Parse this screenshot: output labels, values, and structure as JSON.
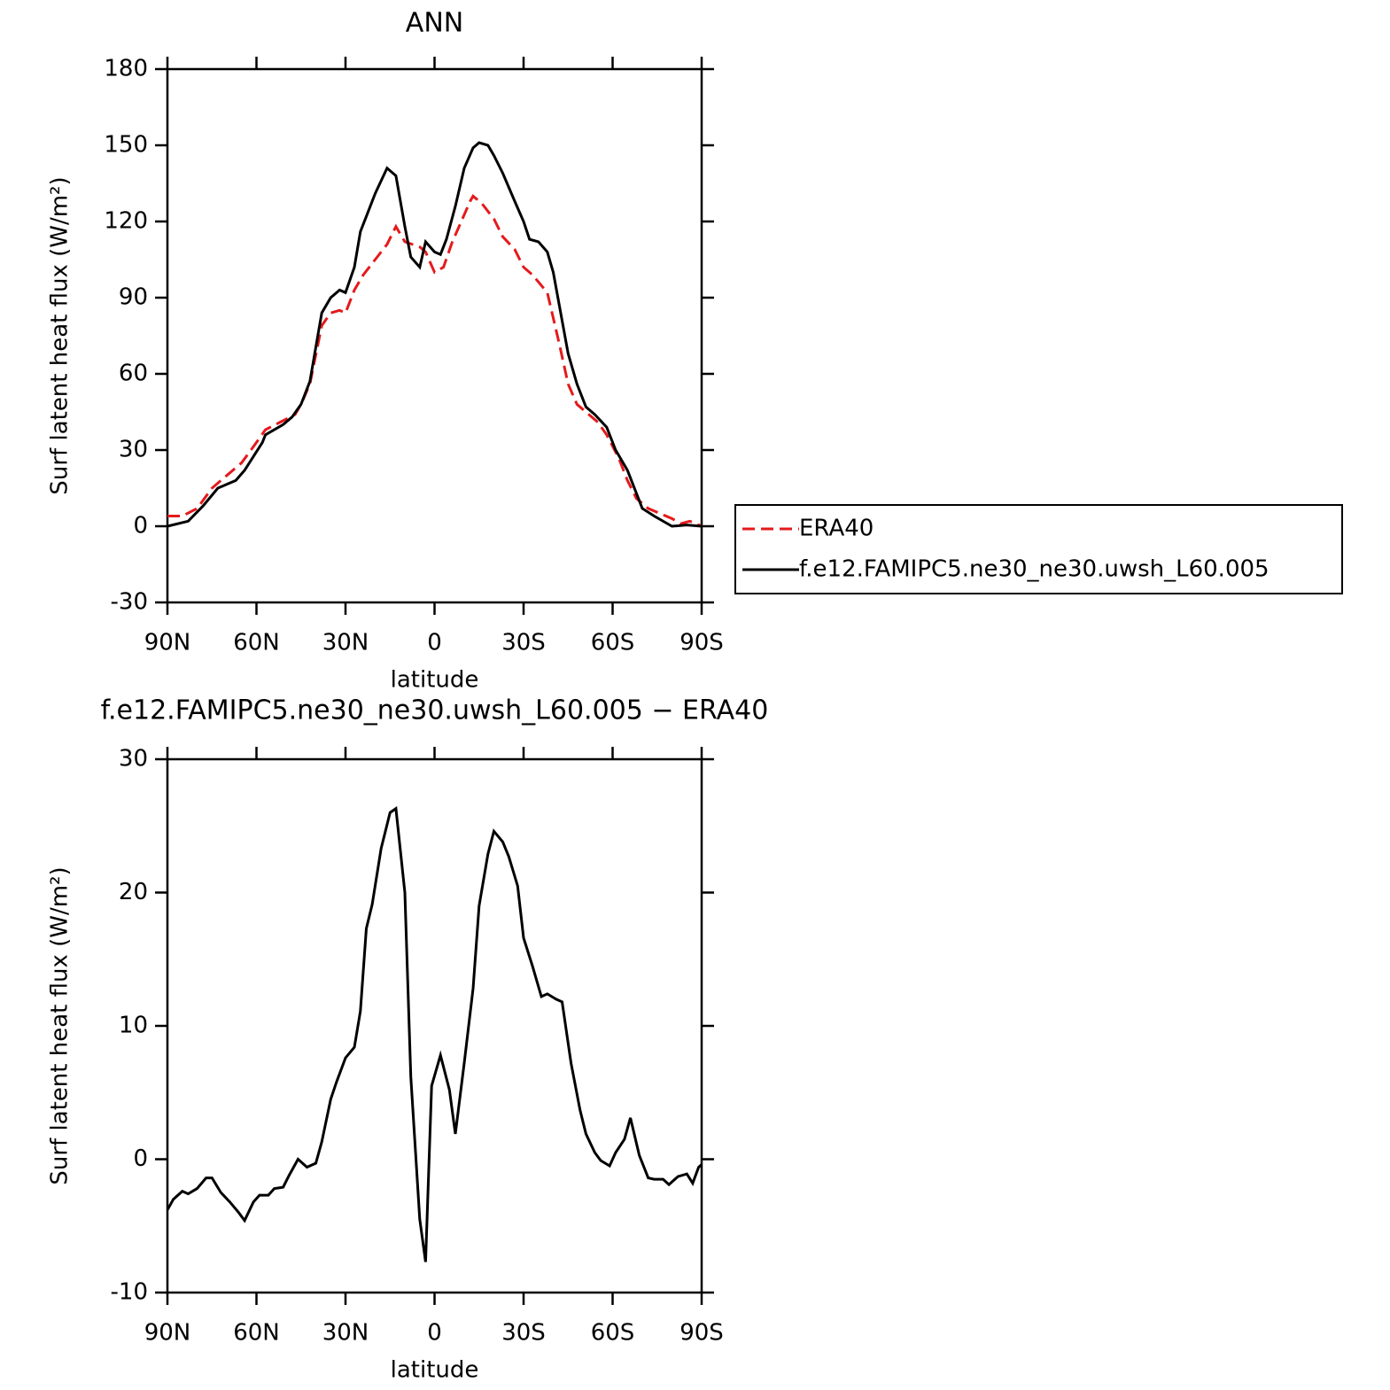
{
  "chart_data": [
    {
      "type": "line",
      "title": "ANN",
      "xlabel": "latitude",
      "ylabel": "Surf latent heat flux (W/m²)",
      "xlim": [
        90,
        -90
      ],
      "xticks": [
        {
          "value": 90,
          "label": "90N"
        },
        {
          "value": 60,
          "label": "60N"
        },
        {
          "value": 30,
          "label": "30N"
        },
        0,
        {
          "value": -30,
          "label": "30S"
        },
        {
          "value": -60,
          "label": "60S"
        },
        {
          "value": -90,
          "label": "90S"
        }
      ],
      "ylim": [
        -30,
        180
      ],
      "yticks": [
        -30,
        0,
        30,
        60,
        90,
        120,
        150,
        180
      ],
      "legend": "right",
      "series": [
        {
          "name": "ERA40",
          "color": "#e41a1c",
          "dashed": true,
          "x": [
            90,
            85,
            80,
            75,
            70,
            65,
            60,
            57,
            52,
            47,
            45,
            42,
            38,
            35,
            32,
            30,
            27,
            24,
            20,
            16,
            13,
            10,
            5,
            3,
            0,
            -3,
            -6,
            -9,
            -12,
            -13,
            -16,
            -20,
            -23,
            -27,
            -30,
            -33,
            -38,
            -42,
            -45,
            -48,
            -52,
            -55,
            -58,
            -62,
            -65,
            -68,
            -72,
            -76,
            -80,
            -83,
            -86,
            -90
          ],
          "values": [
            4,
            4,
            7,
            15,
            20,
            25,
            33,
            38,
            41,
            44,
            48,
            56,
            79,
            84,
            85,
            84,
            93,
            99,
            105,
            111,
            118,
            112,
            110,
            108,
            100,
            102,
            112,
            120,
            128,
            130,
            127,
            121,
            114,
            109,
            102,
            99,
            92,
            72,
            56,
            48,
            44,
            41,
            36,
            27,
            18,
            11,
            7,
            5,
            3,
            1,
            2,
            0
          ]
        },
        {
          "name": "f.e12.FAMIPC5.ne30_ne30.uwsh_L60.005",
          "color": "#000000",
          "dashed": false,
          "x": [
            90,
            83,
            78,
            73,
            67,
            64,
            58,
            57,
            51,
            48,
            45,
            42,
            38,
            35,
            32,
            30,
            27,
            25,
            23,
            20,
            16,
            13,
            10,
            8,
            5,
            3,
            0,
            -2,
            -4,
            -7,
            -10,
            -13,
            -15,
            -18,
            -20,
            -23,
            -27,
            -30,
            -32,
            -35,
            -38,
            -40,
            -45,
            -48,
            -51,
            -54,
            -58,
            -61,
            -65,
            -70,
            -74,
            -80,
            -85,
            -90
          ],
          "values": [
            0,
            2,
            8,
            15,
            18,
            22,
            33,
            36,
            40,
            43,
            48,
            57,
            84,
            90,
            93,
            92,
            102,
            116,
            122,
            131,
            141,
            138,
            118,
            106,
            102,
            112,
            108,
            107,
            113,
            126,
            141,
            149,
            151,
            150,
            146,
            139,
            128,
            120,
            113,
            112,
            108,
            100,
            68,
            56,
            47,
            44,
            39,
            30,
            22,
            7,
            4,
            0,
            0.5,
            0
          ]
        }
      ]
    },
    {
      "type": "line",
      "title": "f.e12.FAMIPC5.ne30_ne30.uwsh_L60.005 − ERA40",
      "xlabel": "latitude",
      "ylabel": "Surf latent heat flux (W/m²)",
      "xlim": [
        90,
        -90
      ],
      "xticks": [
        {
          "value": 90,
          "label": "90N"
        },
        {
          "value": 60,
          "label": "60N"
        },
        {
          "value": 30,
          "label": "30N"
        },
        0,
        {
          "value": -30,
          "label": "30S"
        },
        {
          "value": -60,
          "label": "60S"
        },
        {
          "value": -90,
          "label": "90S"
        }
      ],
      "ylim": [
        -10,
        30
      ],
      "yticks": [
        -10,
        0,
        10,
        20,
        30
      ],
      "color": "#000000",
      "x": [
        90,
        88,
        85,
        83,
        80,
        77,
        75,
        72,
        69,
        66,
        64,
        61,
        59,
        56,
        54,
        51,
        49,
        46,
        43,
        40,
        38,
        35,
        33,
        30,
        27,
        25,
        23,
        21,
        18,
        15,
        13,
        10,
        8,
        5,
        3,
        1,
        -2,
        -5,
        -7,
        -10,
        -13,
        -15,
        -18,
        -20,
        -23,
        -25,
        -28,
        -30,
        -33,
        -36,
        -38,
        -41,
        -43,
        -46,
        -49,
        -51,
        -54,
        -56,
        -59,
        -61,
        -64,
        -66,
        -69,
        -72,
        -74,
        -77,
        -79,
        -82,
        -85,
        -87,
        -89,
        -90
      ],
      "values": [
        -3.8,
        -3,
        -2.4,
        -2.6,
        -2.2,
        -1.4,
        -1.4,
        -2.5,
        -3.2,
        -4,
        -4.6,
        -3.2,
        -2.7,
        -2.7,
        -2.2,
        -2.1,
        -1.2,
        0,
        -0.6,
        -0.3,
        1.3,
        4.5,
        5.8,
        7.6,
        8.4,
        11.1,
        17.3,
        19.1,
        23.3,
        26,
        26.3,
        20,
        6.2,
        -4.5,
        -7.7,
        5.5,
        7.8,
        5.2,
        1.9,
        7.2,
        12.8,
        19,
        22.9,
        24.6,
        23.8,
        22.7,
        20.5,
        16.6,
        14.5,
        12.2,
        12.4,
        12,
        11.8,
        7.2,
        3.7,
        1.9,
        0.5,
        -0.1,
        -0.5,
        0.5,
        1.5,
        3.1,
        0.3,
        -1.4,
        -1.5,
        -1.5,
        -1.9,
        -1.3,
        -1.1,
        -1.8,
        -0.6,
        -0.4
      ]
    }
  ]
}
